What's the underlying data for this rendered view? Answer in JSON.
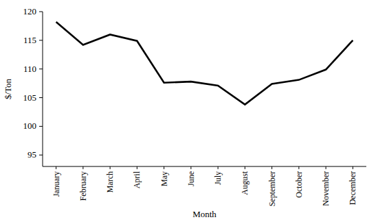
{
  "chart_data": {
    "type": "line",
    "x_label": "Month",
    "y_label": "$/Ton",
    "categories": [
      "January",
      "February",
      "March",
      "April",
      "May",
      "June",
      "July",
      "August",
      "September",
      "October",
      "November",
      "December"
    ],
    "values": [
      118.2,
      114.2,
      116.0,
      114.9,
      107.6,
      107.8,
      107.1,
      103.8,
      107.4,
      108.1,
      109.9,
      115.0
    ],
    "color": "#000000",
    "ylim": [
      93,
      120
    ],
    "yticks": [
      95,
      100,
      105,
      110,
      115,
      120
    ],
    "grid": false
  }
}
